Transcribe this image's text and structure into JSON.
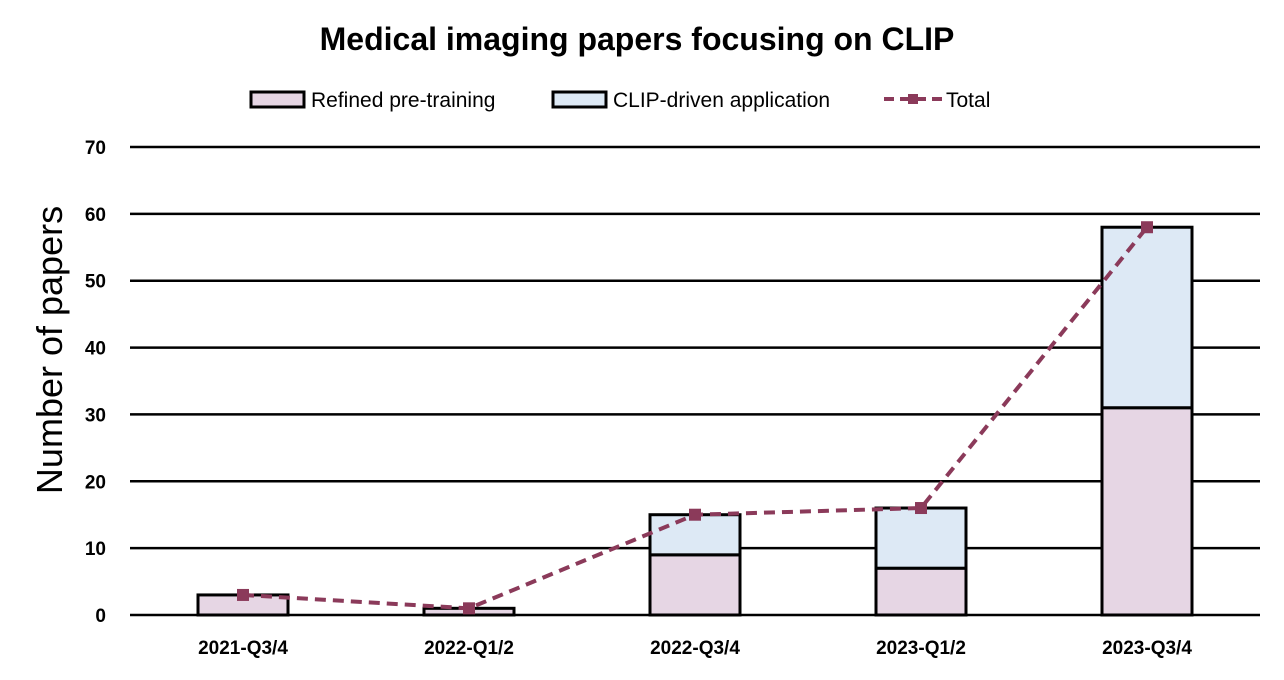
{
  "chart_data": {
    "type": "bar",
    "stacked": true,
    "title": "Medical imaging papers focusing on CLIP",
    "xlabel": "",
    "ylabel": "Number of papers",
    "categories": [
      "2021-Q3/4",
      "2022-Q1/2",
      "2022-Q3/4",
      "2023-Q1/2",
      "2023-Q3/4"
    ],
    "series": [
      {
        "name": "Refined pre-training",
        "kind": "bar",
        "color": "#e6d6e4",
        "values": [
          3,
          1,
          9,
          7,
          31
        ]
      },
      {
        "name": "CLIP-driven application",
        "kind": "bar",
        "color": "#dde9f5",
        "values": [
          0,
          0,
          6,
          9,
          27
        ]
      },
      {
        "name": "Total",
        "kind": "line",
        "style": "dashed",
        "marker": "square",
        "color": "#8b3a5a",
        "values": [
          3,
          1,
          15,
          16,
          58
        ]
      }
    ],
    "ylim": [
      0,
      70
    ],
    "yticks": [
      0,
      10,
      20,
      30,
      40,
      50,
      60,
      70
    ],
    "grid": true,
    "legend_position": "top-center"
  }
}
